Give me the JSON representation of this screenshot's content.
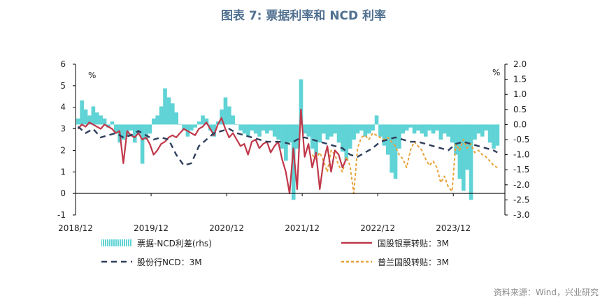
{
  "title": "图表 7:  票据利率和 NCD 利率",
  "source": "资料来源：Wind，兴业研究",
  "chart_data": {
    "type": "line",
    "x_ticks": [
      "2018/12",
      "2019/12",
      "2020/12",
      "2021/12",
      "2022/12",
      "2023/12"
    ],
    "left_axis": {
      "unit": "%",
      "range": [
        -1,
        6
      ],
      "ticks": [
        "-1",
        "0",
        "1",
        "2",
        "3",
        "4",
        "5",
        "6"
      ]
    },
    "right_axis": {
      "unit": "%",
      "range": [
        -3.0,
        2.0
      ],
      "ticks": [
        "-3.0",
        "-2.5",
        "-2.0",
        "-1.5",
        "-1.0",
        "-0.5",
        "0.0",
        "0.5",
        "1.0",
        "1.5",
        "2.0"
      ]
    },
    "legend": [
      "票据-NCD利差(rhs)",
      "国股银票转贴：3M",
      "股份行NCD：3M",
      "普兰国股转贴：3M"
    ],
    "colors": {
      "spread": "#5fd3d5",
      "gg": "#c0384a",
      "ncd": "#2f3e5c",
      "pl": "#e8a33a"
    },
    "series": [
      {
        "name": "票据-NCD利差(rhs)",
        "axis": "right",
        "x": [
          2018.95,
          2019.0,
          2019.05,
          2019.1,
          2019.15,
          2019.2,
          2019.25,
          2019.3,
          2019.35,
          2019.4,
          2019.45,
          2019.5,
          2019.55,
          2019.6,
          2019.65,
          2019.7,
          2019.75,
          2019.8,
          2019.85,
          2019.9,
          2019.95,
          2020.0,
          2020.05,
          2020.1,
          2020.15,
          2020.2,
          2020.25,
          2020.3,
          2020.35,
          2020.4,
          2020.45,
          2020.5,
          2020.55,
          2020.6,
          2020.65,
          2020.7,
          2020.75,
          2020.8,
          2020.85,
          2020.9,
          2020.95,
          2021.0,
          2021.05,
          2021.1,
          2021.15,
          2021.2,
          2021.25,
          2021.3,
          2021.35,
          2021.4,
          2021.45,
          2021.5,
          2021.55,
          2021.6,
          2021.65,
          2021.7,
          2021.75,
          2021.8,
          2021.85,
          2021.9,
          2021.95,
          2022.0,
          2022.05,
          2022.1,
          2022.15,
          2022.2,
          2022.25,
          2022.3,
          2022.35,
          2022.4,
          2022.45,
          2022.5,
          2022.55,
          2022.6,
          2022.65,
          2022.7,
          2022.75,
          2022.8,
          2022.85,
          2022.9,
          2022.95,
          2023.0,
          2023.05,
          2023.1,
          2023.15,
          2023.2,
          2023.25,
          2023.3,
          2023.35,
          2023.4,
          2023.45,
          2023.5,
          2023.55,
          2023.6,
          2023.65,
          2023.7,
          2023.75,
          2023.8,
          2023.85,
          2023.9,
          2023.95,
          2024.0,
          2024.05,
          2024.1,
          2024.15,
          2024.2,
          2024.25,
          2024.3,
          2024.35,
          2024.4,
          2024.45,
          2024.5
        ],
        "values": [
          0.2,
          0.8,
          0.5,
          0.3,
          0.6,
          0.4,
          0.3,
          0.2,
          -0.1,
          0.1,
          -0.3,
          -0.6,
          -0.5,
          -0.4,
          -0.2,
          -0.6,
          -0.3,
          -1.3,
          -0.5,
          -0.3,
          0.2,
          0.3,
          0.6,
          1.2,
          0.9,
          0.7,
          0.4,
          0.0,
          -0.2,
          -0.4,
          -0.2,
          -0.1,
          0.1,
          0.3,
          0.2,
          -0.2,
          -0.4,
          0.1,
          0.5,
          0.9,
          0.6,
          0.3,
          0.0,
          -0.2,
          -0.3,
          -0.4,
          -0.2,
          -0.3,
          -0.4,
          -0.2,
          -0.3,
          -0.2,
          -0.4,
          -0.5,
          -0.8,
          -1.2,
          -0.6,
          -2.5,
          -0.8,
          1.5,
          -0.3,
          -0.4,
          -0.8,
          -1.0,
          -0.6,
          -0.3,
          -0.5,
          -0.4,
          -0.3,
          -0.6,
          -0.9,
          -1.2,
          -0.8,
          -0.5,
          -0.3,
          -0.2,
          -0.4,
          -0.3,
          -0.2,
          0.3,
          -0.4,
          -0.7,
          -1.0,
          -1.6,
          -1.8,
          -0.8,
          -0.3,
          -0.2,
          -0.1,
          -0.3,
          -0.2,
          -0.3,
          -0.4,
          -0.2,
          -0.3,
          -0.2,
          -0.5,
          -0.3,
          -0.4,
          -0.6,
          -1.0,
          -1.8,
          -2.2,
          -1.5,
          -2.5,
          -0.5,
          -0.3,
          -0.4,
          -0.2,
          -0.6,
          -0.8,
          -0.7
        ]
      },
      {
        "name": "国股银票转贴：3M",
        "axis": "left",
        "x": [
          2018.95,
          2019.0,
          2019.05,
          2019.1,
          2019.15,
          2019.2,
          2019.25,
          2019.3,
          2019.35,
          2019.4,
          2019.45,
          2019.5,
          2019.55,
          2019.6,
          2019.65,
          2019.7,
          2019.75,
          2019.8,
          2019.85,
          2019.9,
          2019.95,
          2020.0,
          2020.05,
          2020.1,
          2020.15,
          2020.2,
          2020.25,
          2020.3,
          2020.35,
          2020.4,
          2020.45,
          2020.5,
          2020.55,
          2020.6,
          2020.65,
          2020.7,
          2020.75,
          2020.8,
          2020.85,
          2020.9,
          2020.95,
          2021.0,
          2021.05,
          2021.1,
          2021.15,
          2021.2,
          2021.25,
          2021.3,
          2021.35,
          2021.4,
          2021.45,
          2021.5,
          2021.55,
          2021.6,
          2021.65,
          2021.7,
          2021.75,
          2021.8,
          2021.85,
          2021.9,
          2021.95,
          2022.0,
          2022.05,
          2022.1,
          2022.15,
          2022.2,
          2022.25,
          2022.3,
          2022.35,
          2022.4,
          2022.45,
          2022.5
        ],
        "values": [
          3.0,
          3.2,
          3.1,
          3.3,
          3.2,
          3.1,
          3.0,
          3.2,
          3.1,
          3.0,
          2.8,
          2.9,
          1.4,
          2.9,
          2.7,
          2.6,
          2.8,
          2.5,
          2.6,
          2.3,
          1.8,
          2.0,
          2.3,
          2.4,
          2.6,
          2.7,
          2.6,
          2.8,
          3.0,
          2.9,
          2.8,
          2.7,
          3.0,
          3.1,
          3.3,
          3.0,
          2.7,
          3.2,
          3.5,
          3.0,
          2.6,
          2.8,
          2.5,
          2.2,
          2.3,
          1.8,
          2.4,
          2.5,
          2.1,
          2.3,
          2.4,
          1.9,
          2.2,
          2.4,
          1.6,
          1.0,
          0.0,
          2.1,
          0.2,
          3.9,
          1.7,
          2.3,
          1.2,
          1.9,
          0.2,
          1.5,
          2.2,
          1.0,
          2.0,
          1.8,
          1.2,
          1.6
        ]
      },
      {
        "name": "股份行NCD：3M",
        "axis": "left",
        "x": [
          2018.95,
          2019.05,
          2019.15,
          2019.25,
          2019.35,
          2019.45,
          2019.55,
          2019.65,
          2019.75,
          2019.85,
          2019.95,
          2020.05,
          2020.15,
          2020.25,
          2020.35,
          2020.45,
          2020.55,
          2020.65,
          2020.75,
          2020.85,
          2020.95,
          2021.05,
          2021.15,
          2021.25,
          2021.35,
          2021.45,
          2021.55,
          2021.65,
          2021.75,
          2021.85,
          2021.95,
          2022.05,
          2022.15,
          2022.25,
          2022.35,
          2022.45,
          2022.55,
          2022.65,
          2022.75,
          2022.85,
          2022.95,
          2023.05,
          2023.15,
          2023.25,
          2023.35,
          2023.45,
          2023.55,
          2023.65,
          2023.75,
          2023.85,
          2023.95,
          2024.05,
          2024.15,
          2024.25,
          2024.35,
          2024.45,
          2024.5
        ],
        "values": [
          3.1,
          2.8,
          3.0,
          2.6,
          2.7,
          2.8,
          2.6,
          2.7,
          2.9,
          2.7,
          2.5,
          2.6,
          2.5,
          1.8,
          1.3,
          1.4,
          2.2,
          2.5,
          2.8,
          2.9,
          3.0,
          2.8,
          2.7,
          2.6,
          2.5,
          2.4,
          2.4,
          2.4,
          2.3,
          2.5,
          2.6,
          2.5,
          2.4,
          2.3,
          2.2,
          2.1,
          1.8,
          1.7,
          1.9,
          2.1,
          2.4,
          2.5,
          2.6,
          2.5,
          2.4,
          2.4,
          2.3,
          2.2,
          2.1,
          2.0,
          2.3,
          2.4,
          2.3,
          2.2,
          2.1,
          2.0,
          1.9
        ]
      },
      {
        "name": "普兰国股转贴：3M",
        "axis": "left",
        "x": [
          2022.05,
          2022.1,
          2022.15,
          2022.2,
          2022.25,
          2022.3,
          2022.35,
          2022.4,
          2022.45,
          2022.5,
          2022.55,
          2022.6,
          2022.65,
          2022.7,
          2022.75,
          2022.8,
          2022.85,
          2022.9,
          2022.95,
          2023.0,
          2023.05,
          2023.1,
          2023.15,
          2023.2,
          2023.25,
          2023.3,
          2023.35,
          2023.4,
          2023.45,
          2023.5,
          2023.55,
          2023.6,
          2023.65,
          2023.7,
          2023.75,
          2023.8,
          2023.85,
          2023.9,
          2023.95,
          2024.0,
          2024.05,
          2024.1,
          2024.15,
          2024.2,
          2024.25,
          2024.3,
          2024.35,
          2024.4,
          2024.45,
          2024.5
        ],
        "values": [
          1.8,
          1.6,
          1.9,
          1.5,
          1.0,
          2.0,
          1.8,
          1.3,
          1.0,
          1.7,
          1.3,
          0.0,
          2.1,
          2.6,
          2.7,
          2.5,
          2.8,
          2.7,
          2.6,
          2.5,
          2.6,
          2.4,
          2.2,
          1.8,
          1.6,
          1.2,
          2.0,
          2.4,
          2.2,
          2.0,
          1.6,
          1.3,
          1.5,
          1.2,
          0.5,
          0.8,
          0.3,
          0.1,
          2.3,
          2.0,
          2.5,
          2.1,
          2.3,
          1.9,
          2.0,
          1.8,
          1.7,
          1.5,
          1.3,
          1.2
        ]
      }
    ]
  }
}
